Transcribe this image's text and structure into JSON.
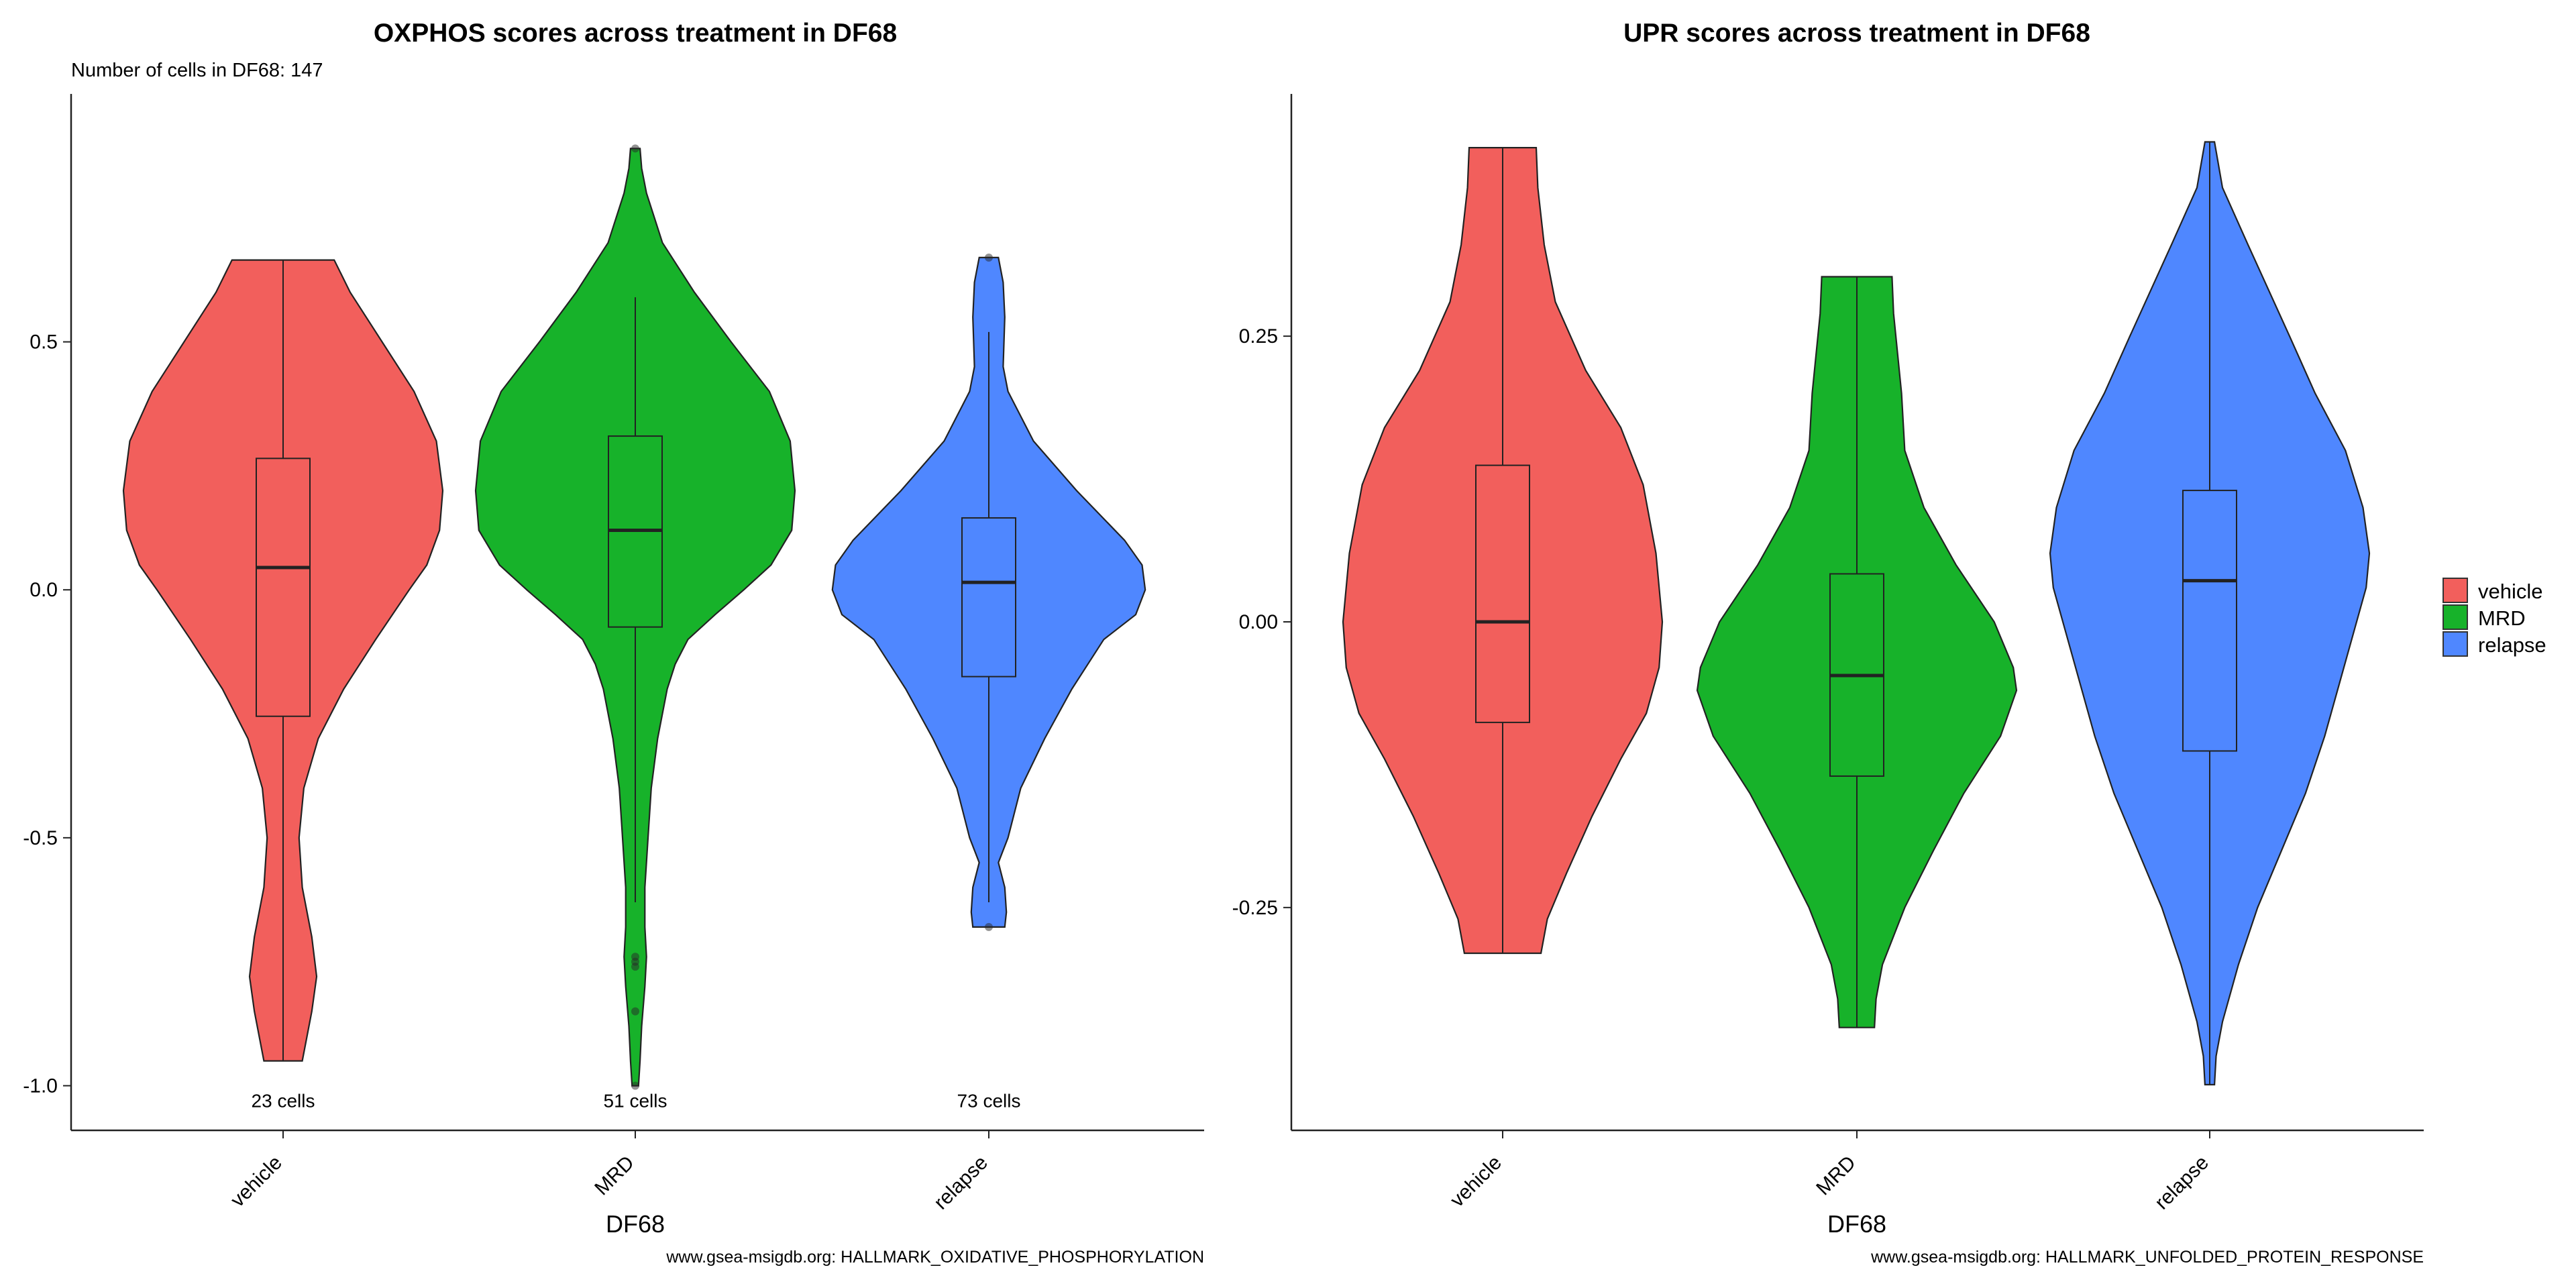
{
  "chart_data": [
    {
      "type": "violin",
      "title": "OXPHOS scores across treatment in DF68",
      "subtitle": "Number of cells in DF68: 147",
      "xlabel": "DF68",
      "ylabel": "",
      "caption": "www.gsea-msigdb.org: HALLMARK_OXIDATIVE_PHOSPHORYLATION",
      "categories": [
        "vehicle",
        "MRD",
        "relapse"
      ],
      "colors": [
        "#F25F5C",
        "#17B22A",
        "#4F87FF"
      ],
      "ylim": [
        -1.09,
        1.0
      ],
      "yticks": [
        0.5,
        0.0,
        -0.5,
        -1.0
      ],
      "ytick_labels": [
        "0.5",
        "0.0",
        "-0.5",
        "-1.0"
      ],
      "count_labels": [
        "23 cells",
        "51 cells",
        "73 cells"
      ],
      "count_label_y": -1.03,
      "groups": [
        {
          "name": "vehicle",
          "n_cells": 23,
          "min": -0.95,
          "q1": -0.255,
          "median": 0.045,
          "q3": 0.265,
          "max": 0.665,
          "whisker_low": -0.95,
          "whisker_high": 0.665,
          "outliers": [],
          "density": [
            [
              0.665,
              0.32
            ],
            [
              0.6,
              0.42
            ],
            [
              0.5,
              0.62
            ],
            [
              0.4,
              0.82
            ],
            [
              0.3,
              0.96
            ],
            [
              0.2,
              1.0
            ],
            [
              0.12,
              0.98
            ],
            [
              0.05,
              0.9
            ],
            [
              0.0,
              0.79
            ],
            [
              -0.1,
              0.58
            ],
            [
              -0.2,
              0.38
            ],
            [
              -0.3,
              0.22
            ],
            [
              -0.4,
              0.13
            ],
            [
              -0.5,
              0.1
            ],
            [
              -0.6,
              0.12
            ],
            [
              -0.7,
              0.18
            ],
            [
              -0.78,
              0.21
            ],
            [
              -0.85,
              0.18
            ],
            [
              -0.95,
              0.12
            ]
          ]
        },
        {
          "name": "MRD",
          "n_cells": 51,
          "min": -1.0,
          "q1": -0.075,
          "median": 0.12,
          "q3": 0.31,
          "max": 0.89,
          "whisker_low": -0.63,
          "whisker_high": 0.59,
          "outliers": [
            -0.74,
            -0.75,
            -0.76,
            -0.85,
            -1.0,
            0.89
          ],
          "density": [
            [
              0.89,
              0.03
            ],
            [
              0.85,
              0.04
            ],
            [
              0.8,
              0.07
            ],
            [
              0.7,
              0.17
            ],
            [
              0.6,
              0.37
            ],
            [
              0.5,
              0.6
            ],
            [
              0.4,
              0.84
            ],
            [
              0.3,
              0.97
            ],
            [
              0.2,
              1.0
            ],
            [
              0.12,
              0.98
            ],
            [
              0.05,
              0.85
            ],
            [
              0.0,
              0.68
            ],
            [
              -0.05,
              0.5
            ],
            [
              -0.1,
              0.33
            ],
            [
              -0.15,
              0.25
            ],
            [
              -0.2,
              0.2
            ],
            [
              -0.3,
              0.14
            ],
            [
              -0.4,
              0.1
            ],
            [
              -0.5,
              0.08
            ],
            [
              -0.6,
              0.06
            ],
            [
              -0.68,
              0.06
            ],
            [
              -0.74,
              0.07
            ],
            [
              -0.8,
              0.06
            ],
            [
              -0.88,
              0.04
            ],
            [
              -0.95,
              0.03
            ],
            [
              -1.0,
              0.02
            ]
          ]
        },
        {
          "name": "relapse",
          "n_cells": 73,
          "min": -0.68,
          "q1": -0.175,
          "median": 0.015,
          "q3": 0.145,
          "max": 0.67,
          "whisker_low": -0.63,
          "whisker_high": 0.52,
          "outliers": [
            -0.68,
            0.67
          ],
          "density": [
            [
              0.67,
              0.06
            ],
            [
              0.62,
              0.09
            ],
            [
              0.55,
              0.1
            ],
            [
              0.45,
              0.09
            ],
            [
              0.4,
              0.12
            ],
            [
              0.3,
              0.28
            ],
            [
              0.2,
              0.55
            ],
            [
              0.1,
              0.85
            ],
            [
              0.05,
              0.96
            ],
            [
              0.0,
              0.98
            ],
            [
              -0.05,
              0.92
            ],
            [
              -0.1,
              0.72
            ],
            [
              -0.2,
              0.52
            ],
            [
              -0.3,
              0.35
            ],
            [
              -0.4,
              0.2
            ],
            [
              -0.5,
              0.12
            ],
            [
              -0.55,
              0.06
            ],
            [
              -0.6,
              0.1
            ],
            [
              -0.65,
              0.11
            ],
            [
              -0.68,
              0.1
            ]
          ]
        }
      ]
    },
    {
      "type": "violin",
      "title": "UPR scores across treatment in DF68",
      "xlabel": "DF68",
      "ylabel": "",
      "caption": "www.gsea-msigdb.org: HALLMARK_UNFOLDED_PROTEIN_RESPONSE",
      "categories": [
        "vehicle",
        "MRD",
        "relapse"
      ],
      "colors": [
        "#F25F5C",
        "#17B22A",
        "#4F87FF"
      ],
      "ylim": [
        -0.445,
        0.462
      ],
      "yticks": [
        0.25,
        0.0,
        -0.25
      ],
      "ytick_labels": [
        "0.25",
        "0.00",
        "-0.25"
      ],
      "groups": [
        {
          "name": "vehicle",
          "min": -0.29,
          "q1": -0.088,
          "median": 0.0,
          "q3": 0.137,
          "max": 0.415,
          "whisker_low": -0.29,
          "whisker_high": 0.415,
          "outliers": [],
          "density": [
            [
              0.415,
              0.21
            ],
            [
              0.38,
              0.22
            ],
            [
              0.33,
              0.26
            ],
            [
              0.28,
              0.33
            ],
            [
              0.22,
              0.52
            ],
            [
              0.17,
              0.74
            ],
            [
              0.12,
              0.88
            ],
            [
              0.06,
              0.96
            ],
            [
              0.0,
              1.0
            ],
            [
              -0.04,
              0.98
            ],
            [
              -0.08,
              0.9
            ],
            [
              -0.12,
              0.74
            ],
            [
              -0.17,
              0.56
            ],
            [
              -0.22,
              0.4
            ],
            [
              -0.26,
              0.28
            ],
            [
              -0.29,
              0.24
            ]
          ]
        },
        {
          "name": "MRD",
          "min": -0.355,
          "q1": -0.135,
          "median": -0.047,
          "q3": 0.042,
          "max": 0.302,
          "whisker_low": -0.355,
          "whisker_high": 0.302,
          "outliers": [],
          "density": [
            [
              0.302,
              0.22
            ],
            [
              0.27,
              0.23
            ],
            [
              0.2,
              0.28
            ],
            [
              0.15,
              0.3
            ],
            [
              0.1,
              0.42
            ],
            [
              0.05,
              0.62
            ],
            [
              0.0,
              0.86
            ],
            [
              -0.04,
              0.98
            ],
            [
              -0.06,
              1.0
            ],
            [
              -0.1,
              0.9
            ],
            [
              -0.15,
              0.67
            ],
            [
              -0.2,
              0.48
            ],
            [
              -0.25,
              0.3
            ],
            [
              -0.3,
              0.16
            ],
            [
              -0.33,
              0.12
            ],
            [
              -0.355,
              0.11
            ]
          ]
        },
        {
          "name": "relapse",
          "min": -0.405,
          "q1": -0.113,
          "median": 0.036,
          "q3": 0.115,
          "max": 0.42,
          "whisker_low": -0.405,
          "whisker_high": 0.42,
          "outliers": [],
          "density": [
            [
              0.42,
              0.03
            ],
            [
              0.38,
              0.08
            ],
            [
              0.33,
              0.24
            ],
            [
              0.25,
              0.5
            ],
            [
              0.2,
              0.66
            ],
            [
              0.15,
              0.85
            ],
            [
              0.1,
              0.96
            ],
            [
              0.06,
              1.0
            ],
            [
              0.03,
              0.98
            ],
            [
              -0.01,
              0.9
            ],
            [
              -0.05,
              0.82
            ],
            [
              -0.1,
              0.72
            ],
            [
              -0.15,
              0.6
            ],
            [
              -0.2,
              0.45
            ],
            [
              -0.25,
              0.3
            ],
            [
              -0.3,
              0.18
            ],
            [
              -0.35,
              0.08
            ],
            [
              -0.38,
              0.04
            ],
            [
              -0.405,
              0.03
            ]
          ]
        }
      ]
    }
  ],
  "legend": {
    "items": [
      {
        "label": "vehicle",
        "color": "#F25F5C"
      },
      {
        "label": "MRD",
        "color": "#17B22A"
      },
      {
        "label": "relapse",
        "color": "#4F87FF"
      }
    ]
  }
}
